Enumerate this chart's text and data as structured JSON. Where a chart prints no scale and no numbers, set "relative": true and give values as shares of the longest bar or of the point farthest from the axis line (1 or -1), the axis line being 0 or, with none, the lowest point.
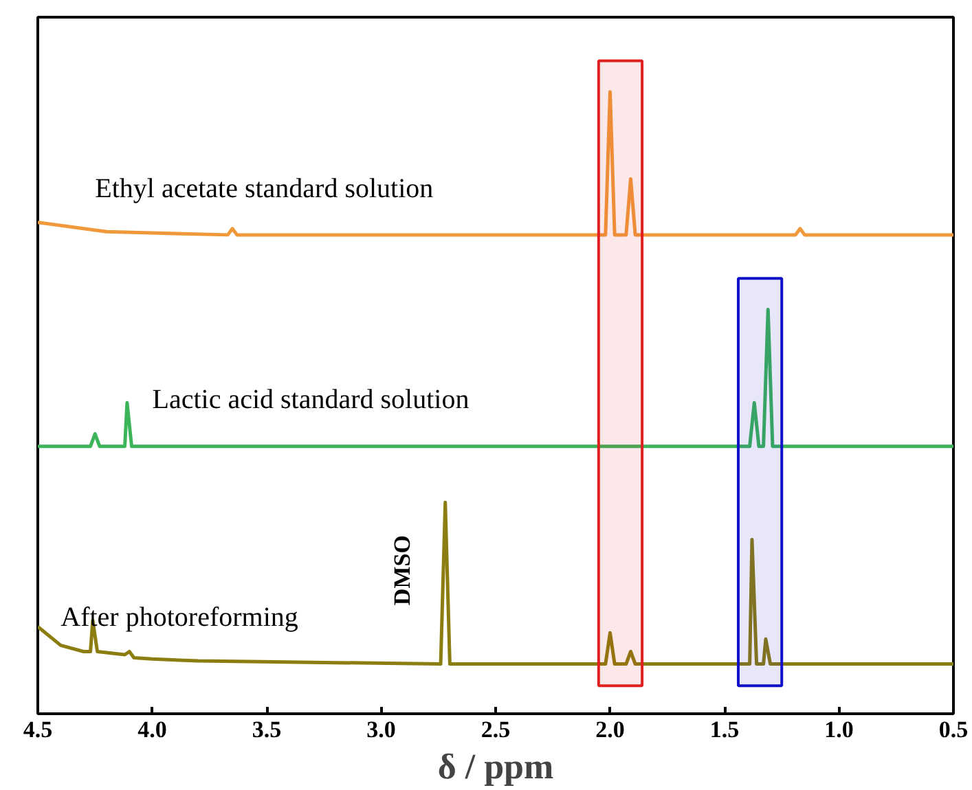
{
  "chart_data": {
    "type": "line",
    "relative": true,
    "xlabel": "δ / ppm",
    "xlim": [
      4.5,
      0.5
    ],
    "xticks": [
      {
        "value": 4.5,
        "label": "4.5"
      },
      {
        "value": 4.0,
        "label": "4.0"
      },
      {
        "value": 3.5,
        "label": "3.5"
      },
      {
        "value": 3.0,
        "label": "3.0"
      },
      {
        "value": 2.5,
        "label": "2.5"
      },
      {
        "value": 2.0,
        "label": "2.0"
      },
      {
        "value": 1.5,
        "label": "1.5"
      },
      {
        "value": 1.0,
        "label": "1.0"
      },
      {
        "value": 0.5,
        "label": "0.5"
      }
    ],
    "grid": false,
    "tick_labels": "x",
    "series": [
      {
        "name": "Ethyl  acetate standard solution",
        "color": "#f0993a",
        "x": [
          4.5,
          4.2,
          3.67,
          3.65,
          3.63,
          2.02,
          2.0,
          1.98,
          1.93,
          1.91,
          1.89,
          1.19,
          1.17,
          1.15,
          0.5
        ],
        "values": [
          0.79,
          0.775,
          0.77,
          0.78,
          0.77,
          0.77,
          1.0,
          0.77,
          0.77,
          0.86,
          0.77,
          0.77,
          0.78,
          0.77,
          0.77
        ]
      },
      {
        "name": "Lactic  acid standard solution",
        "color": "#3cb45a",
        "x": [
          4.5,
          4.27,
          4.25,
          4.23,
          4.12,
          4.11,
          4.09,
          1.39,
          1.37,
          1.35,
          1.33,
          1.31,
          1.29,
          0.5
        ],
        "values": [
          0.43,
          0.43,
          0.45,
          0.43,
          0.43,
          0.5,
          0.43,
          0.43,
          0.5,
          0.43,
          0.43,
          0.65,
          0.43,
          0.43
        ]
      },
      {
        "name": "After photoreforming",
        "color": "#8c7d10",
        "x": [
          4.5,
          4.4,
          4.3,
          4.27,
          4.26,
          4.24,
          4.12,
          4.1,
          4.08,
          4.0,
          3.8,
          2.74,
          2.72,
          2.7,
          2.02,
          2.0,
          1.98,
          1.93,
          1.91,
          1.89,
          1.39,
          1.38,
          1.36,
          1.33,
          1.32,
          1.3,
          0.5
        ],
        "values": [
          0.14,
          0.11,
          0.1,
          0.1,
          0.15,
          0.1,
          0.095,
          0.1,
          0.09,
          0.088,
          0.085,
          0.08,
          0.34,
          0.08,
          0.08,
          0.13,
          0.08,
          0.08,
          0.1,
          0.08,
          0.08,
          0.28,
          0.08,
          0.08,
          0.12,
          0.08,
          0.08
        ]
      }
    ],
    "annotations": [
      {
        "text": "DMSO",
        "x": 2.72,
        "y": 0.34
      }
    ],
    "bands": [
      {
        "axis": "x",
        "from": 2.05,
        "to": 1.86,
        "color": "#e02020"
      },
      {
        "axis": "x",
        "from": 1.44,
        "to": 1.25,
        "color": "#1010c8"
      }
    ]
  }
}
